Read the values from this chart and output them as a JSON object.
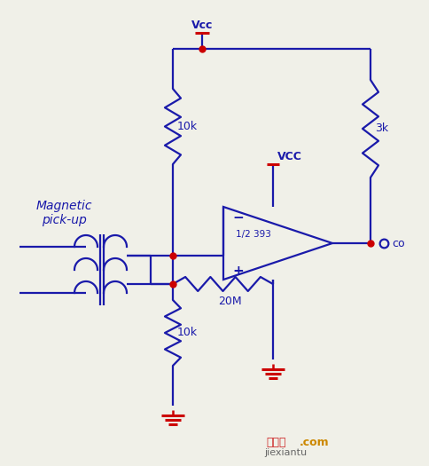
{
  "bg_color": "#f0f0e8",
  "line_color": "#1a1aaa",
  "red_color": "#cc0000",
  "labels": {
    "vcc_top": "Vcc",
    "vcc_mid": "VCC",
    "r1": "10k",
    "r2": "3k",
    "r3": "20M",
    "r4": "10k",
    "co": "co",
    "lm": "1/2 393",
    "mag": "Magnetic\npick-up",
    "jiexiantu": "jiexiantu"
  },
  "watermark": {
    "text1": "接线图",
    "text2": ".com",
    "sub": "jiexiantu"
  }
}
